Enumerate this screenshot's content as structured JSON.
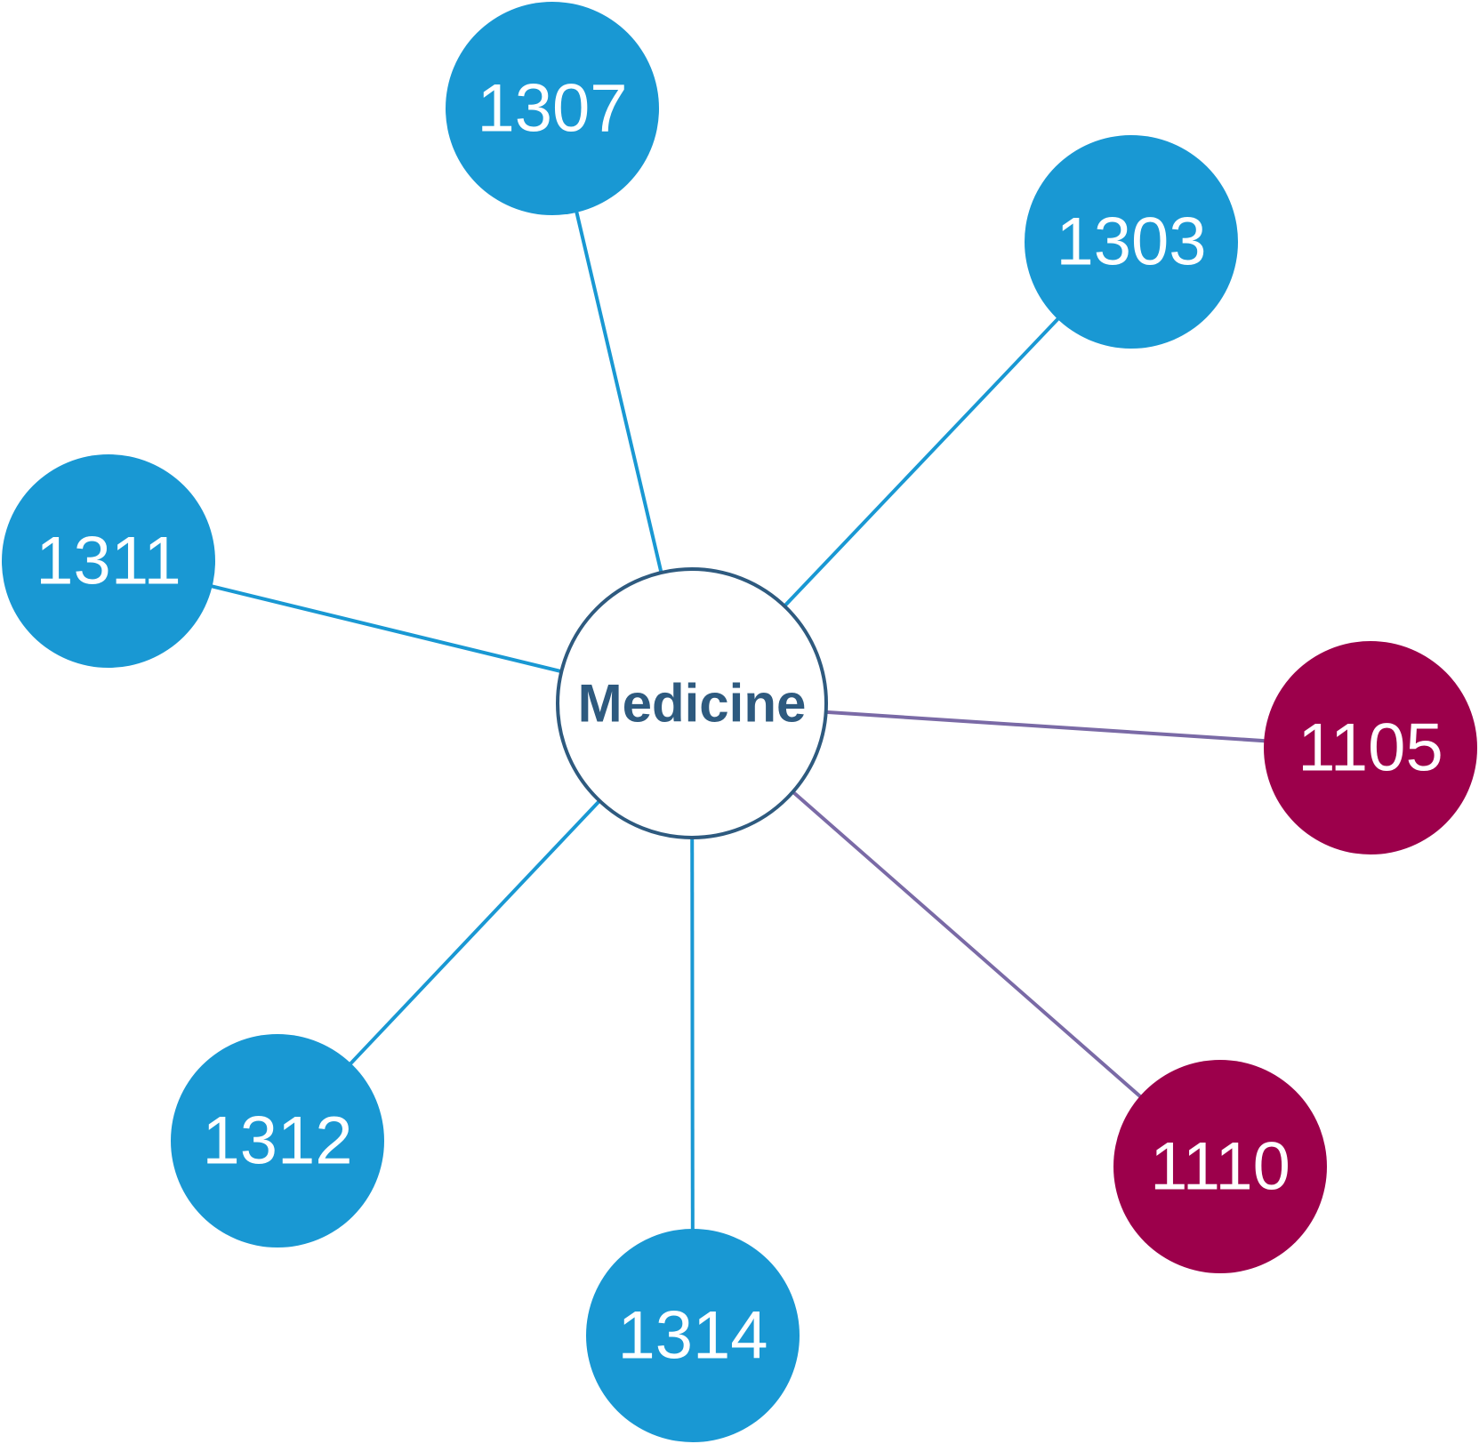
{
  "center": {
    "label": "Medicine",
    "stroke": "#2e5a7f",
    "fill": "#ffffff"
  },
  "colors": {
    "blue": "#1998d3",
    "crimson": "#9c004b",
    "link_blue": "#1998d3",
    "link_purple": "#7a6aa6"
  },
  "nodes": [
    {
      "id": "1307",
      "label": "1307",
      "color": "blue"
    },
    {
      "id": "1303",
      "label": "1303",
      "color": "blue"
    },
    {
      "id": "1311",
      "label": "1311",
      "color": "blue"
    },
    {
      "id": "1105",
      "label": "1105",
      "color": "crimson"
    },
    {
      "id": "1312",
      "label": "1312",
      "color": "blue"
    },
    {
      "id": "1314",
      "label": "1314",
      "color": "blue"
    },
    {
      "id": "1110",
      "label": "1110",
      "color": "crimson"
    }
  ],
  "links": [
    {
      "source": "Medicine",
      "target": "1307",
      "color": "link_blue"
    },
    {
      "source": "Medicine",
      "target": "1303",
      "color": "link_blue"
    },
    {
      "source": "Medicine",
      "target": "1311",
      "color": "link_blue"
    },
    {
      "source": "Medicine",
      "target": "1105",
      "color": "link_purple"
    },
    {
      "source": "Medicine",
      "target": "1312",
      "color": "link_blue"
    },
    {
      "source": "Medicine",
      "target": "1314",
      "color": "link_blue"
    },
    {
      "source": "Medicine",
      "target": "1110",
      "color": "link_purple"
    }
  ]
}
